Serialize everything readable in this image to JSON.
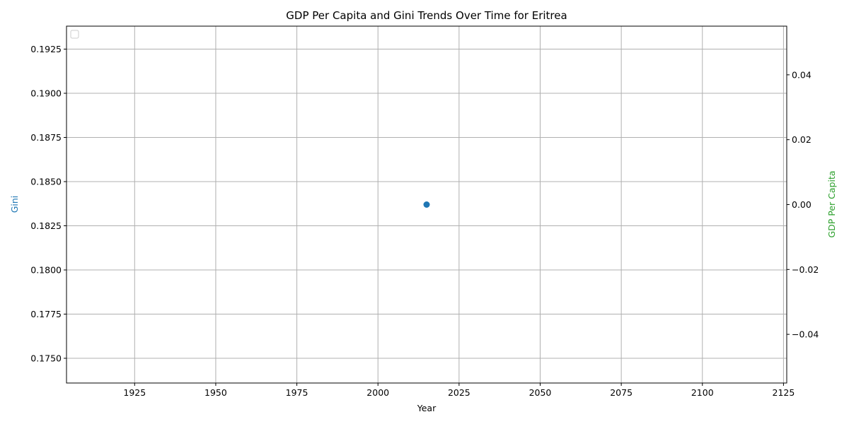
{
  "chart_data": {
    "type": "scatter",
    "title": "GDP Per Capita and Gini Trends Over Time for Eritrea",
    "xlabel": "Year",
    "ylabel_left": "Gini",
    "ylabel_right": "GDP Per Capita",
    "xlim": [
      1904,
      2126
    ],
    "x_ticks": [
      1925,
      1950,
      1975,
      2000,
      2025,
      2050,
      2075,
      2100,
      2125
    ],
    "ylim_left": [
      0.1736,
      0.1938
    ],
    "y_ticks_left": [
      0.175,
      0.1775,
      0.18,
      0.1825,
      0.185,
      0.1875,
      0.19,
      0.1925
    ],
    "y_tick_labels_left": [
      "0.1750",
      "0.1775",
      "0.1800",
      "0.1825",
      "0.1850",
      "0.1875",
      "0.1900",
      "0.1925"
    ],
    "ylim_right": [
      -0.055,
      0.055
    ],
    "y_ticks_right": [
      -0.04,
      -0.02,
      0.0,
      0.02,
      0.04
    ],
    "y_tick_labels_right": [
      "−0.04",
      "−0.02",
      "0.00",
      "0.02",
      "0.04"
    ],
    "grid": true,
    "legend": "upper-left",
    "series": [
      {
        "axis": "left",
        "x": [
          2015
        ],
        "y": [
          0.1837
        ],
        "color": "#1f77b4"
      },
      {
        "axis": "right",
        "x": [],
        "y": [],
        "color": "#2ca02c"
      }
    ],
    "colors": {
      "gini_axis": "#1f77b4",
      "gdp_axis": "#2ca02c",
      "grid": "#b0b0b0"
    }
  }
}
